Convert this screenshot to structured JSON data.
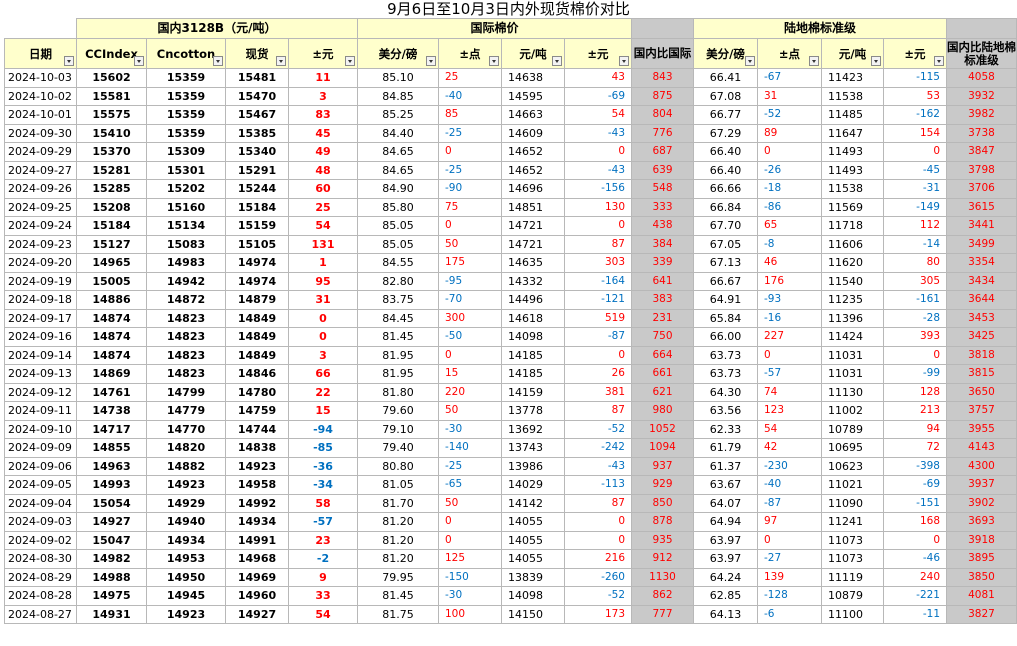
{
  "title": "9月6日至10月3日内外现货棉价对比",
  "groups": {
    "domestic": "国内3128B（元/吨）",
    "intl": "国际棉价",
    "landed": "陆地棉标准级"
  },
  "columns": {
    "date": "日期",
    "ccindex": "CCIndex",
    "cncotton": "Cncotton",
    "spot": "现货",
    "chg_yuan": "±元",
    "usc_lb": "美分/磅",
    "chg_pt": "±点",
    "yuan_t": "元/吨",
    "chg_yuan2": "±元",
    "dom_vs_intl": "国内比国际",
    "usc_lb2": "美分/磅",
    "chg_pt2": "±点",
    "yuan_t2": "元/吨",
    "chg_yuan3": "±元",
    "dom_vs_landed": "国内比陆地棉标准级"
  },
  "rows": [
    [
      "2024-10-03",
      "15602",
      "15359",
      "15481",
      "11",
      "85.10",
      "25",
      "14638",
      "43",
      "843",
      "66.41",
      "-67",
      "11423",
      "-115",
      "4058"
    ],
    [
      "2024-10-02",
      "15581",
      "15359",
      "15470",
      "3",
      "84.85",
      "-40",
      "14595",
      "-69",
      "875",
      "67.08",
      "31",
      "11538",
      "53",
      "3932"
    ],
    [
      "2024-10-01",
      "15575",
      "15359",
      "15467",
      "83",
      "85.25",
      "85",
      "14663",
      "54",
      "804",
      "66.77",
      "-52",
      "11485",
      "-162",
      "3982"
    ],
    [
      "2024-09-30",
      "15410",
      "15359",
      "15385",
      "45",
      "84.40",
      "-25",
      "14609",
      "-43",
      "776",
      "67.29",
      "89",
      "11647",
      "154",
      "3738"
    ],
    [
      "2024-09-29",
      "15370",
      "15309",
      "15340",
      "49",
      "84.65",
      "0",
      "14652",
      "0",
      "687",
      "66.40",
      "0",
      "11493",
      "0",
      "3847"
    ],
    [
      "2024-09-27",
      "15281",
      "15301",
      "15291",
      "48",
      "84.65",
      "-25",
      "14652",
      "-43",
      "639",
      "66.40",
      "-26",
      "11493",
      "-45",
      "3798"
    ],
    [
      "2024-09-26",
      "15285",
      "15202",
      "15244",
      "60",
      "84.90",
      "-90",
      "14696",
      "-156",
      "548",
      "66.66",
      "-18",
      "11538",
      "-31",
      "3706"
    ],
    [
      "2024-09-25",
      "15208",
      "15160",
      "15184",
      "25",
      "85.80",
      "75",
      "14851",
      "130",
      "333",
      "66.84",
      "-86",
      "11569",
      "-149",
      "3615"
    ],
    [
      "2024-09-24",
      "15184",
      "15134",
      "15159",
      "54",
      "85.05",
      "0",
      "14721",
      "0",
      "438",
      "67.70",
      "65",
      "11718",
      "112",
      "3441"
    ],
    [
      "2024-09-23",
      "15127",
      "15083",
      "15105",
      "131",
      "85.05",
      "50",
      "14721",
      "87",
      "384",
      "67.05",
      "-8",
      "11606",
      "-14",
      "3499"
    ],
    [
      "2024-09-20",
      "14965",
      "14983",
      "14974",
      "1",
      "84.55",
      "175",
      "14635",
      "303",
      "339",
      "67.13",
      "46",
      "11620",
      "80",
      "3354"
    ],
    [
      "2024-09-19",
      "15005",
      "14942",
      "14974",
      "95",
      "82.80",
      "-95",
      "14332",
      "-164",
      "641",
      "66.67",
      "176",
      "11540",
      "305",
      "3434"
    ],
    [
      "2024-09-18",
      "14886",
      "14872",
      "14879",
      "31",
      "83.75",
      "-70",
      "14496",
      "-121",
      "383",
      "64.91",
      "-93",
      "11235",
      "-161",
      "3644"
    ],
    [
      "2024-09-17",
      "14874",
      "14823",
      "14849",
      "0",
      "84.45",
      "300",
      "14618",
      "519",
      "231",
      "65.84",
      "-16",
      "11396",
      "-28",
      "3453"
    ],
    [
      "2024-09-16",
      "14874",
      "14823",
      "14849",
      "0",
      "81.45",
      "-50",
      "14098",
      "-87",
      "750",
      "66.00",
      "227",
      "11424",
      "393",
      "3425"
    ],
    [
      "2024-09-14",
      "14874",
      "14823",
      "14849",
      "3",
      "81.95",
      "0",
      "14185",
      "0",
      "664",
      "63.73",
      "0",
      "11031",
      "0",
      "3818"
    ],
    [
      "2024-09-13",
      "14869",
      "14823",
      "14846",
      "66",
      "81.95",
      "15",
      "14185",
      "26",
      "661",
      "63.73",
      "-57",
      "11031",
      "-99",
      "3815"
    ],
    [
      "2024-09-12",
      "14761",
      "14799",
      "14780",
      "22",
      "81.80",
      "220",
      "14159",
      "381",
      "621",
      "64.30",
      "74",
      "11130",
      "128",
      "3650"
    ],
    [
      "2024-09-11",
      "14738",
      "14779",
      "14759",
      "15",
      "79.60",
      "50",
      "13778",
      "87",
      "980",
      "63.56",
      "123",
      "11002",
      "213",
      "3757"
    ],
    [
      "2024-09-10",
      "14717",
      "14770",
      "14744",
      "-94",
      "79.10",
      "-30",
      "13692",
      "-52",
      "1052",
      "62.33",
      "54",
      "10789",
      "94",
      "3955"
    ],
    [
      "2024-09-09",
      "14855",
      "14820",
      "14838",
      "-85",
      "79.40",
      "-140",
      "13743",
      "-242",
      "1094",
      "61.79",
      "42",
      "10695",
      "72",
      "4143"
    ],
    [
      "2024-09-06",
      "14963",
      "14882",
      "14923",
      "-36",
      "80.80",
      "-25",
      "13986",
      "-43",
      "937",
      "61.37",
      "-230",
      "10623",
      "-398",
      "4300"
    ],
    [
      "2024-09-05",
      "14993",
      "14923",
      "14958",
      "-34",
      "81.05",
      "-65",
      "14029",
      "-113",
      "929",
      "63.67",
      "-40",
      "11021",
      "-69",
      "3937"
    ],
    [
      "2024-09-04",
      "15054",
      "14929",
      "14992",
      "58",
      "81.70",
      "50",
      "14142",
      "87",
      "850",
      "64.07",
      "-87",
      "11090",
      "-151",
      "3902"
    ],
    [
      "2024-09-03",
      "14927",
      "14940",
      "14934",
      "-57",
      "81.20",
      "0",
      "14055",
      "0",
      "878",
      "64.94",
      "97",
      "11241",
      "168",
      "3693"
    ],
    [
      "2024-09-02",
      "15047",
      "14934",
      "14991",
      "23",
      "81.20",
      "0",
      "14055",
      "0",
      "935",
      "63.97",
      "0",
      "11073",
      "0",
      "3918"
    ],
    [
      "2024-08-30",
      "14982",
      "14953",
      "14968",
      "-2",
      "81.20",
      "125",
      "14055",
      "216",
      "912",
      "63.97",
      "-27",
      "11073",
      "-46",
      "3895"
    ],
    [
      "2024-08-29",
      "14988",
      "14950",
      "14969",
      "9",
      "79.95",
      "-150",
      "13839",
      "-260",
      "1130",
      "64.24",
      "139",
      "11119",
      "240",
      "3850"
    ],
    [
      "2024-08-28",
      "14975",
      "14945",
      "14960",
      "33",
      "81.45",
      "-30",
      "14098",
      "-52",
      "862",
      "62.85",
      "-128",
      "10879",
      "-221",
      "4081"
    ],
    [
      "2024-08-27",
      "14931",
      "14923",
      "14927",
      "54",
      "81.75",
      "100",
      "14150",
      "173",
      "777",
      "64.13",
      "-6",
      "11100",
      "-11",
      "3827"
    ]
  ],
  "colors": {
    "positive": "#ff0000",
    "negative": "#0070c0",
    "header_bg": "#ffffcc",
    "highlight_bg": "#c9c9c9"
  },
  "icons": {
    "filter": "dropdown-arrow-icon"
  }
}
